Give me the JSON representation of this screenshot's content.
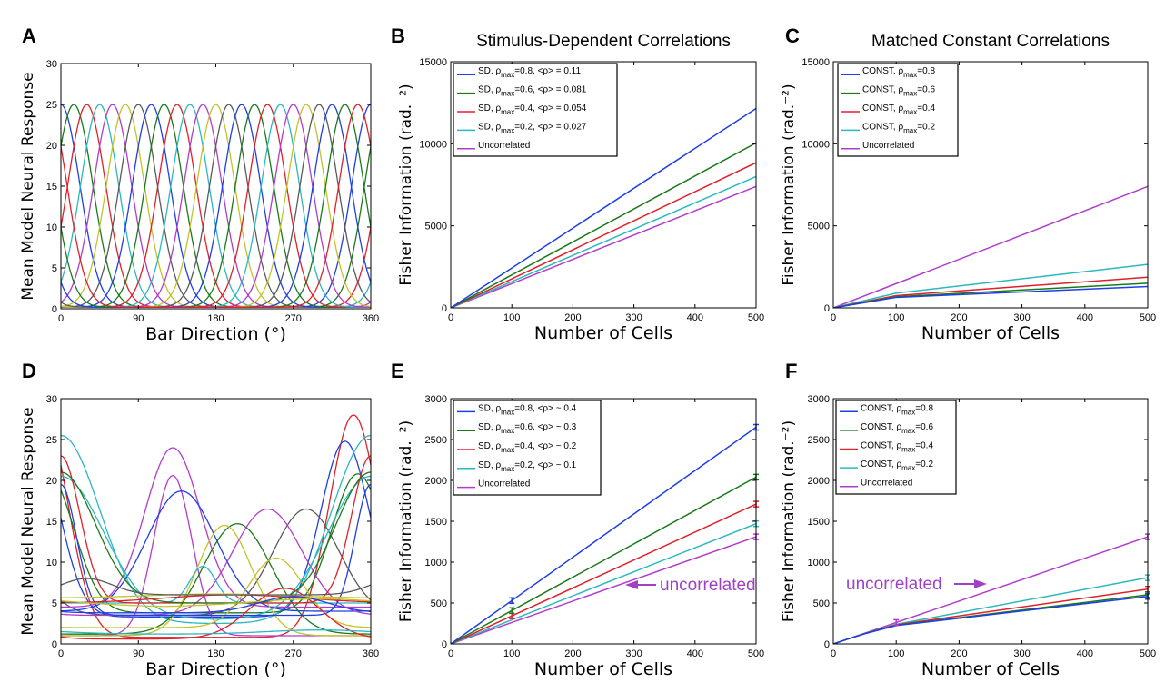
{
  "colors": {
    "blue": "#1f3fe6",
    "green": "#1a7a1a",
    "red": "#e0202a",
    "cyan": "#2ab8c0",
    "magenta": "#b13ccc",
    "olive": "#c4c228",
    "gray": "#5a5a5a",
    "annotation": "#a040c8"
  },
  "chart_data": [
    {
      "panel": "A",
      "type": "line",
      "title": "",
      "xlabel": "Bar Direction (°)",
      "ylabel": "Mean Model Neural Response",
      "xlim": [
        0,
        360
      ],
      "ylim": [
        0,
        30
      ],
      "xticks": [
        "0",
        "90",
        "180",
        "270",
        "360"
      ],
      "yticks": [
        "0",
        "5",
        "10",
        "15",
        "20",
        "25",
        "30"
      ],
      "grid": false,
      "legend": null,
      "curve_family": {
        "description": "Gaussian tuning curves",
        "count": 24,
        "peak": 25,
        "baseline": 0.2,
        "width_deg": 22,
        "preferred_directions_deg": [
          0,
          15,
          30,
          45,
          60,
          75,
          90,
          105,
          120,
          135,
          150,
          165,
          180,
          195,
          210,
          225,
          240,
          255,
          270,
          285,
          300,
          315,
          330,
          345
        ]
      }
    },
    {
      "panel": "B",
      "type": "line",
      "title": "Stimulus-Dependent Correlations",
      "xlabel": "Number of Cells",
      "ylabel": "Fisher Information (rad.⁻²)",
      "xlim": [
        0,
        500
      ],
      "ylim": [
        0,
        15000
      ],
      "xticks": [
        "0",
        "100",
        "200",
        "300",
        "400",
        "500"
      ],
      "yticks": [
        "0",
        "5000",
        "10000",
        "15000"
      ],
      "grid": false,
      "legend_position": "top-left",
      "x": [
        0,
        100,
        500
      ],
      "series": [
        {
          "name": "SD, ρmax=0.8, <ρ> = 0.11",
          "legend": [
            "SD, ρ",
            "max",
            "=0.8, <ρ> = 0.11"
          ],
          "color": "blue",
          "values": [
            0,
            2430,
            12150
          ]
        },
        {
          "name": "SD, ρmax=0.6, <ρ> = 0.081",
          "legend": [
            "SD, ρ",
            "max",
            "=0.6, <ρ> = 0.081"
          ],
          "color": "green",
          "values": [
            0,
            2010,
            10050
          ]
        },
        {
          "name": "SD, ρmax=0.4, <ρ> = 0.054",
          "legend": [
            "SD, ρ",
            "max",
            "=0.4, <ρ> = 0.054"
          ],
          "color": "red",
          "values": [
            0,
            1770,
            8850
          ]
        },
        {
          "name": "SD, ρmax=0.2, <ρ> = 0.027",
          "legend": [
            "SD, ρ",
            "max",
            "=0.2, <ρ> = 0.027"
          ],
          "color": "cyan",
          "values": [
            0,
            1600,
            8000
          ]
        },
        {
          "name": "Uncorrelated",
          "legend": [
            "Uncorrelated",
            "",
            ""
          ],
          "color": "magenta",
          "values": [
            0,
            1480,
            7400
          ]
        }
      ]
    },
    {
      "panel": "C",
      "type": "line",
      "title": "Matched Constant Correlations",
      "xlabel": "Number of Cells",
      "ylabel": "Fisher Information (rad.⁻²)",
      "xlim": [
        0,
        500
      ],
      "ylim": [
        0,
        15000
      ],
      "xticks": [
        "0",
        "100",
        "200",
        "300",
        "400",
        "500"
      ],
      "yticks": [
        "0",
        "5000",
        "10000",
        "15000"
      ],
      "grid": false,
      "legend_position": "top-left",
      "x": [
        0,
        100,
        500
      ],
      "series": [
        {
          "name": "CONST, ρmax=0.8",
          "legend": [
            "CONST, ρ",
            "max",
            "=0.8"
          ],
          "color": "blue",
          "values": [
            0,
            640,
            1300
          ]
        },
        {
          "name": "CONST, ρmax=0.6",
          "legend": [
            "CONST, ρ",
            "max",
            "=0.6"
          ],
          "color": "green",
          "values": [
            0,
            680,
            1500
          ]
        },
        {
          "name": "CONST, ρmax=0.4",
          "legend": [
            "CONST, ρ",
            "max",
            "=0.4"
          ],
          "color": "red",
          "values": [
            0,
            750,
            1870
          ]
        },
        {
          "name": "CONST, ρmax=0.2",
          "legend": [
            "CONST, ρ",
            "max",
            "=0.2"
          ],
          "color": "cyan",
          "values": [
            0,
            900,
            2650
          ]
        },
        {
          "name": "Uncorrelated",
          "legend": [
            "Uncorrelated",
            "",
            ""
          ],
          "color": "magenta",
          "values": [
            0,
            1480,
            7400
          ]
        }
      ]
    },
    {
      "panel": "D",
      "type": "line",
      "title": "",
      "xlabel": "Bar Direction (°)",
      "ylabel": "Mean Model Neural Response",
      "xlim": [
        0,
        360
      ],
      "ylim": [
        0,
        30
      ],
      "xticks": [
        "0",
        "90",
        "180",
        "270",
        "360"
      ],
      "yticks": [
        "0",
        "5",
        "10",
        "15",
        "20",
        "25",
        "30"
      ],
      "grid": false,
      "legend": null,
      "curves": [
        {
          "color": "red",
          "baseline": 0.8,
          "amp": 27.2,
          "mu": 340,
          "sigma": 28
        },
        {
          "color": "blue",
          "baseline": 3.3,
          "amp": 21.5,
          "mu": 330,
          "sigma": 28
        },
        {
          "color": "cyan",
          "baseline": 2.5,
          "amp": 23,
          "mu": 360,
          "sigma": 45
        },
        {
          "color": "green",
          "baseline": 3.8,
          "amp": 17,
          "mu": 345,
          "sigma": 30
        },
        {
          "color": "gray",
          "baseline": 3.5,
          "amp": 13,
          "mu": 285,
          "sigma": 38
        },
        {
          "color": "magenta",
          "baseline": 4.5,
          "amp": 19.5,
          "mu": 130,
          "sigma": 32
        },
        {
          "color": "magenta",
          "baseline": 1,
          "amp": 19.6,
          "mu": 130,
          "sigma": 22
        },
        {
          "color": "blue",
          "baseline": 4,
          "amp": 14.7,
          "mu": 140,
          "sigma": 40
        },
        {
          "color": "green",
          "baseline": 1.2,
          "amp": 13.5,
          "mu": 205,
          "sigma": 40
        },
        {
          "color": "olive",
          "baseline": 1,
          "amp": 13.5,
          "mu": 190,
          "sigma": 32
        },
        {
          "color": "magenta",
          "baseline": 3.5,
          "amp": 13,
          "mu": 240,
          "sigma": 40
        },
        {
          "color": "olive",
          "baseline": 2,
          "amp": 8.5,
          "mu": 250,
          "sigma": 32
        },
        {
          "color": "cyan",
          "baseline": 5,
          "amp": 4.5,
          "mu": 165,
          "sigma": 15
        },
        {
          "color": "cyan",
          "baseline": 3,
          "amp": 17.5,
          "mu": 0,
          "sigma": 50
        },
        {
          "color": "red",
          "baseline": 5,
          "amp": 18,
          "mu": 0,
          "sigma": 22
        },
        {
          "color": "green",
          "baseline": 5,
          "amp": 16,
          "mu": 0,
          "sigma": 40
        },
        {
          "color": "blue",
          "baseline": 3.5,
          "amp": 16,
          "mu": 0,
          "sigma": 18
        },
        {
          "color": "red",
          "baseline": 5,
          "amp": 1,
          "mu": 200,
          "sigma": 80
        },
        {
          "color": "red",
          "baseline": 0.6,
          "amp": 6.2,
          "mu": 260,
          "sigma": 40
        },
        {
          "color": "olive",
          "baseline": 4.5,
          "amp": 1,
          "mu": 300,
          "sigma": 80
        },
        {
          "color": "olive",
          "baseline": 5.6,
          "amp": 0.5,
          "mu": 180,
          "sigma": 80
        },
        {
          "color": "gray",
          "baseline": 6,
          "amp": 2,
          "mu": 30,
          "sigma": 30
        },
        {
          "color": "blue",
          "baseline": 3.8,
          "amp": 2,
          "mu": 270,
          "sigma": 40
        },
        {
          "color": "cyan",
          "baseline": 1.2,
          "amp": 0.5,
          "mu": 300,
          "sigma": 60
        }
      ]
    },
    {
      "panel": "E",
      "type": "line",
      "title": "",
      "xlabel": "Number of Cells",
      "ylabel": "Fisher Information (rad.⁻²)",
      "xlim": [
        0,
        500
      ],
      "ylim": [
        0,
        3000
      ],
      "xticks": [
        "0",
        "100",
        "200",
        "300",
        "400",
        "500"
      ],
      "yticks": [
        "0",
        "500",
        "1000",
        "1500",
        "2000",
        "2500",
        "3000"
      ],
      "grid": false,
      "legend_position": "top-left",
      "annotation": "uncorrelated",
      "x": [
        0,
        10,
        20,
        50,
        100,
        500
      ],
      "series": [
        {
          "name": "SD, ρmax=0.8, <ρ> ~ 0.4",
          "legend": [
            "SD, ρ",
            "max",
            "=0.8, <ρ> ~ 0.4"
          ],
          "color": "blue",
          "values": [
            0,
            53,
            106,
            265,
            530,
            2650
          ],
          "errorbars": [
            100,
            500
          ]
        },
        {
          "name": "SD, ρmax=0.6, <ρ> ~ 0.3",
          "legend": [
            "SD, ρ",
            "max",
            "=0.6, <ρ> ~ 0.3"
          ],
          "color": "green",
          "values": [
            0,
            41,
            82,
            204,
            408,
            2040
          ],
          "errorbars": [
            100,
            500
          ]
        },
        {
          "name": "SD, ρmax=0.4, <ρ> ~ 0.2",
          "legend": [
            "SD, ρ",
            "max",
            "=0.4, <ρ> ~ 0.2"
          ],
          "color": "red",
          "values": [
            0,
            34,
            68,
            171,
            342,
            1710
          ],
          "errorbars": [
            100,
            500
          ]
        },
        {
          "name": "SD, ρmax=0.2, <ρ> ~ 0.1",
          "legend": [
            "SD, ρ",
            "max",
            "=0.2, <ρ> ~ 0.1"
          ],
          "color": "cyan",
          "values": [
            0,
            29,
            59,
            147,
            294,
            1470
          ],
          "errorbars": [
            500
          ]
        },
        {
          "name": "Uncorrelated",
          "legend": [
            "Uncorrelated",
            "",
            ""
          ],
          "color": "magenta",
          "values": [
            0,
            26,
            52,
            131,
            262,
            1310
          ],
          "errorbars": [
            500
          ]
        }
      ]
    },
    {
      "panel": "F",
      "type": "line",
      "title": "",
      "xlabel": "Number of Cells",
      "ylabel": "Fisher Information (rad.⁻²)",
      "xlim": [
        0,
        500
      ],
      "ylim": [
        0,
        3000
      ],
      "xticks": [
        "0",
        "100",
        "200",
        "300",
        "400",
        "500"
      ],
      "yticks": [
        "0",
        "500",
        "1000",
        "1500",
        "2000",
        "2500",
        "3000"
      ],
      "grid": false,
      "legend_position": "top-left",
      "annotation": "uncorrelated",
      "x": [
        0,
        10,
        20,
        50,
        100,
        500
      ],
      "series": [
        {
          "name": "CONST, ρmax=0.8",
          "legend": [
            "CONST, ρ",
            "max",
            "=0.8"
          ],
          "color": "blue",
          "values": [
            0,
            26,
            52,
            125,
            225,
            580
          ],
          "errorbars": [
            500
          ]
        },
        {
          "name": "CONST, ρmax=0.6",
          "legend": [
            "CONST, ρ",
            "max",
            "=0.6"
          ],
          "color": "green",
          "values": [
            0,
            26,
            52,
            126,
            228,
            600
          ],
          "errorbars": [
            500
          ]
        },
        {
          "name": "CONST, ρmax=0.4",
          "legend": [
            "CONST, ρ",
            "max",
            "=0.4"
          ],
          "color": "red",
          "values": [
            0,
            26,
            52,
            127,
            233,
            670
          ],
          "errorbars": [
            500
          ]
        },
        {
          "name": "CONST, ρmax=0.2",
          "legend": [
            "CONST, ρ",
            "max",
            "=0.2"
          ],
          "color": "cyan",
          "values": [
            0,
            26,
            52,
            128,
            240,
            810
          ],
          "errorbars": [
            500
          ]
        },
        {
          "name": "Uncorrelated",
          "legend": [
            "Uncorrelated",
            "",
            ""
          ],
          "color": "magenta",
          "values": [
            0,
            26,
            52,
            131,
            262,
            1310
          ],
          "errorbars": [
            100,
            500
          ]
        }
      ]
    }
  ]
}
